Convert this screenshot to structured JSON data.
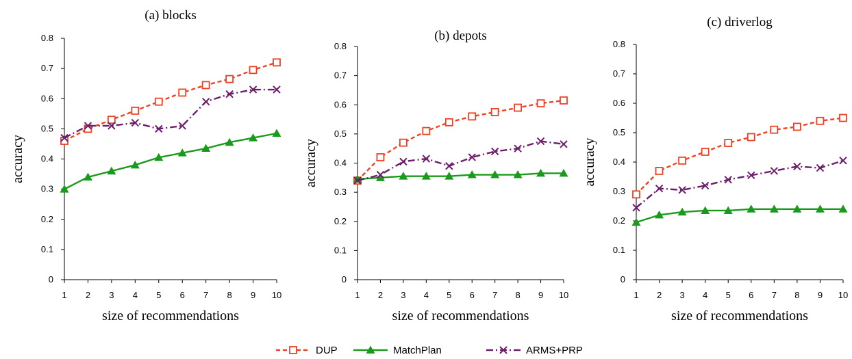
{
  "legend": {
    "items": [
      {
        "name": "DUP",
        "color": "#ee4022",
        "dash": "6,4",
        "marker": "square-open"
      },
      {
        "name": "MatchPlan",
        "color": "#1a9a1a",
        "dash": "",
        "marker": "triangle"
      },
      {
        "name": "ARMS+PRP",
        "color": "#6b1d6b",
        "dash": "10,4,2,4",
        "marker": "x"
      }
    ]
  },
  "chart_data": [
    {
      "type": "line",
      "title": "(a) blocks",
      "xlabel": "size of recommendations",
      "ylabel": "accuracy",
      "x": [
        1,
        2,
        3,
        4,
        5,
        6,
        7,
        8,
        9,
        10
      ],
      "x_tick_labels": [
        "1",
        "2",
        "3",
        "4",
        "5",
        "6",
        "7",
        "8",
        "9",
        "10"
      ],
      "ylim": [
        0,
        0.8
      ],
      "y_ticks": [
        "0",
        "0.1",
        "0.2",
        "0.3",
        "0.4",
        "0.5",
        "0.6",
        "0.7",
        "0.8"
      ],
      "grid": false,
      "series": [
        {
          "name": "DUP",
          "values": [
            0.46,
            0.5,
            0.53,
            0.56,
            0.59,
            0.62,
            0.645,
            0.665,
            0.695,
            0.72
          ]
        },
        {
          "name": "MatchPlan",
          "values": [
            0.3,
            0.34,
            0.36,
            0.38,
            0.405,
            0.42,
            0.435,
            0.455,
            0.47,
            0.485
          ]
        },
        {
          "name": "ARMS+PRP",
          "values": [
            0.47,
            0.51,
            0.51,
            0.52,
            0.5,
            0.51,
            0.59,
            0.615,
            0.63,
            0.63
          ]
        }
      ]
    },
    {
      "type": "line",
      "title": "(b) depots",
      "xlabel": "size of recommendations",
      "ylabel": "accuracy",
      "x": [
        1,
        2,
        3,
        4,
        5,
        6,
        7,
        8,
        9,
        10
      ],
      "x_tick_labels": [
        "1",
        "2",
        "3",
        "4",
        "5",
        "6",
        "7",
        "8",
        "9",
        "10"
      ],
      "ylim": [
        0,
        0.8
      ],
      "y_ticks": [
        "0",
        "0.1",
        "0.2",
        "0.3",
        "0.4",
        "0.5",
        "0.6",
        "0.7",
        "0.8"
      ],
      "grid": false,
      "series": [
        {
          "name": "DUP",
          "values": [
            0.34,
            0.42,
            0.47,
            0.51,
            0.54,
            0.56,
            0.575,
            0.59,
            0.605,
            0.615
          ]
        },
        {
          "name": "MatchPlan",
          "values": [
            0.345,
            0.35,
            0.355,
            0.355,
            0.355,
            0.36,
            0.36,
            0.36,
            0.365,
            0.365
          ]
        },
        {
          "name": "ARMS+PRP",
          "values": [
            0.34,
            0.36,
            0.405,
            0.415,
            0.39,
            0.42,
            0.44,
            0.45,
            0.475,
            0.465
          ]
        }
      ]
    },
    {
      "type": "line",
      "title": "(c) driverlog",
      "xlabel": "size of recommendations",
      "ylabel": "accuracy",
      "x": [
        1,
        2,
        3,
        4,
        5,
        6,
        7,
        8,
        9,
        10
      ],
      "x_tick_labels": [
        "1",
        "2",
        "3",
        "4",
        "5",
        "6",
        "7",
        "8",
        "9",
        "10"
      ],
      "ylim": [
        0,
        0.8
      ],
      "y_ticks": [
        "0",
        "0.1",
        "0.2",
        "0.3",
        "0.4",
        "0.5",
        "0.6",
        "0.7",
        "0.8"
      ],
      "grid": false,
      "series": [
        {
          "name": "DUP",
          "values": [
            0.29,
            0.37,
            0.405,
            0.435,
            0.465,
            0.485,
            0.51,
            0.52,
            0.54,
            0.55
          ]
        },
        {
          "name": "MatchPlan",
          "values": [
            0.195,
            0.22,
            0.23,
            0.235,
            0.235,
            0.24,
            0.24,
            0.24,
            0.24,
            0.24
          ]
        },
        {
          "name": "ARMS+PRP",
          "values": [
            0.245,
            0.31,
            0.305,
            0.32,
            0.34,
            0.355,
            0.37,
            0.385,
            0.38,
            0.405
          ]
        }
      ]
    }
  ]
}
